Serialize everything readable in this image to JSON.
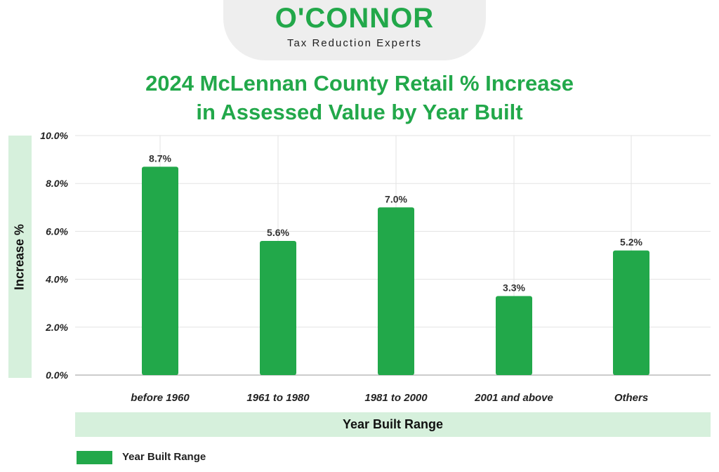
{
  "logo": {
    "name": "O'CONNOR",
    "tagline": "Tax Reduction Experts"
  },
  "colors": {
    "accent": "#22a84a",
    "band": "#d6f0dc",
    "grid": "#e3e3e3"
  },
  "chart_data": {
    "type": "bar",
    "title_line1": "2024 McLennan County Retail % Increase",
    "title_line2": "in Assessed Value by Year Built",
    "xlabel": "Year Built Range",
    "ylabel": "Increase %",
    "categories": [
      "before 1960",
      "1961 to 1980",
      "1981 to 2000",
      "2001 and above",
      "Others"
    ],
    "series": [
      {
        "name": "Year Built Range",
        "values": [
          8.7,
          5.6,
          7.0,
          3.3,
          5.2
        ],
        "labels": [
          "8.7%",
          "5.6%",
          "7.0%",
          "3.3%",
          "5.2%"
        ]
      }
    ],
    "ylim": [
      0,
      10
    ],
    "yticks": [
      "0.0%",
      "2.0%",
      "4.0%",
      "6.0%",
      "8.0%",
      "10.0%"
    ],
    "grid": true,
    "legend": "bottom-left"
  }
}
